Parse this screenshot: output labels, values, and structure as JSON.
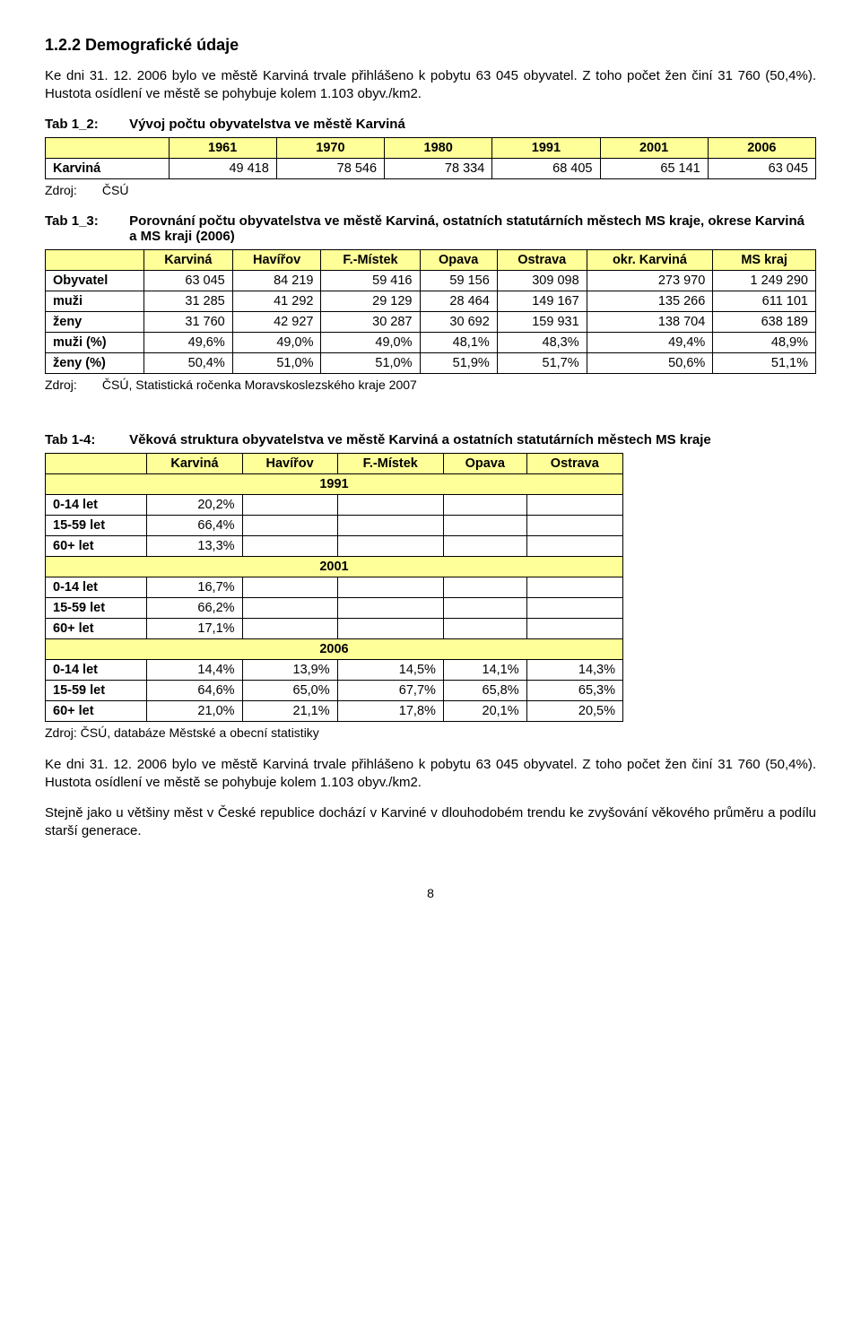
{
  "section_heading": "1.2.2  Demografické údaje",
  "intro_paragraph": "Ke dni 31. 12. 2006 bylo ve městě Karviná trvale přihlášeno k pobytu 63 045 obyvatel. Z toho počet žen činí 31 760 (50,4%). Hustota osídlení ve městě se pohybuje kolem 1.103 obyv./km2.",
  "tab12": {
    "label": "Tab 1_2:",
    "title": "Vývoj počtu obyvatelstva ve městě Karviná",
    "years": [
      "1961",
      "1970",
      "1980",
      "1991",
      "2001",
      "2006"
    ],
    "row_label": "Karviná",
    "values": [
      "49 418",
      "78 546",
      "78 334",
      "68 405",
      "65 141",
      "63 045"
    ],
    "source_lbl": "Zdroj:",
    "source_val": "ČSÚ"
  },
  "tab13": {
    "label": "Tab 1_3:",
    "title": "Porovnání počtu obyvatelstva ve městě Karviná, ostatních statutárních městech MS kraje, okrese Karviná a MS kraji (2006)",
    "columns": [
      "Karviná",
      "Havířov",
      "F.-Místek",
      "Opava",
      "Ostrava",
      "okr. Karviná",
      "MS kraj"
    ],
    "rows": [
      {
        "label": "Obyvatel",
        "vals": [
          "63 045",
          "84 219",
          "59 416",
          "59 156",
          "309 098",
          "273 970",
          "1 249 290"
        ]
      },
      {
        "label": "muži",
        "vals": [
          "31 285",
          "41 292",
          "29 129",
          "28 464",
          "149 167",
          "135 266",
          "611 101"
        ]
      },
      {
        "label": "ženy",
        "vals": [
          "31 760",
          "42 927",
          "30 287",
          "30 692",
          "159 931",
          "138 704",
          "638 189"
        ]
      },
      {
        "label": "muži (%)",
        "vals": [
          "49,6%",
          "49,0%",
          "49,0%",
          "48,1%",
          "48,3%",
          "49,4%",
          "48,9%"
        ]
      },
      {
        "label": "ženy (%)",
        "vals": [
          "50,4%",
          "51,0%",
          "51,0%",
          "51,9%",
          "51,7%",
          "50,6%",
          "51,1%"
        ]
      }
    ],
    "source_lbl": "Zdroj:",
    "source_val": "ČSÚ, Statistická ročenka Moravskoslezského kraje 2007"
  },
  "tab14": {
    "label": "Tab 1-4:",
    "title": "Věková struktura obyvatelstva ve městě Karviná a ostatních statutárních městech MS kraje",
    "columns": [
      "Karviná",
      "Havířov",
      "F.-Místek",
      "Opava",
      "Ostrava"
    ],
    "sections": [
      {
        "year": "1991",
        "rows": [
          {
            "label": "0-14 let",
            "vals": [
              "20,2%",
              "",
              "",
              "",
              ""
            ]
          },
          {
            "label": "15-59 let",
            "vals": [
              "66,4%",
              "",
              "",
              "",
              ""
            ]
          },
          {
            "label": "60+ let",
            "vals": [
              "13,3%",
              "",
              "",
              "",
              ""
            ]
          }
        ]
      },
      {
        "year": "2001",
        "rows": [
          {
            "label": "0-14 let",
            "vals": [
              "16,7%",
              "",
              "",
              "",
              ""
            ]
          },
          {
            "label": "15-59 let",
            "vals": [
              "66,2%",
              "",
              "",
              "",
              ""
            ]
          },
          {
            "label": "60+ let",
            "vals": [
              "17,1%",
              "",
              "",
              "",
              ""
            ]
          }
        ]
      },
      {
        "year": "2006",
        "rows": [
          {
            "label": "0-14 let",
            "vals": [
              "14,4%",
              "13,9%",
              "14,5%",
              "14,1%",
              "14,3%"
            ]
          },
          {
            "label": "15-59 let",
            "vals": [
              "64,6%",
              "65,0%",
              "67,7%",
              "65,8%",
              "65,3%"
            ]
          },
          {
            "label": "60+ let",
            "vals": [
              "21,0%",
              "21,1%",
              "17,8%",
              "20,1%",
              "20,5%"
            ]
          }
        ]
      }
    ],
    "source": "Zdroj: ČSÚ, databáze Městské a obecní statistiky"
  },
  "closing_para1": "Ke dni 31. 12. 2006 bylo ve městě Karviná trvale přihlášeno k pobytu 63 045 obyvatel. Z toho počet žen činí 31 760 (50,4%). Hustota osídlení ve městě se pohybuje kolem 1.103 obyv./km2.",
  "closing_para2": "Stejně jako u většiny měst v České republice dochází v Karviné v dlouhodobém trendu ke zvyšování věkového průměru a podílu starší generace.",
  "page_number": "8",
  "style": {
    "header_bg": "#ffff99",
    "border_color": "#000000"
  }
}
